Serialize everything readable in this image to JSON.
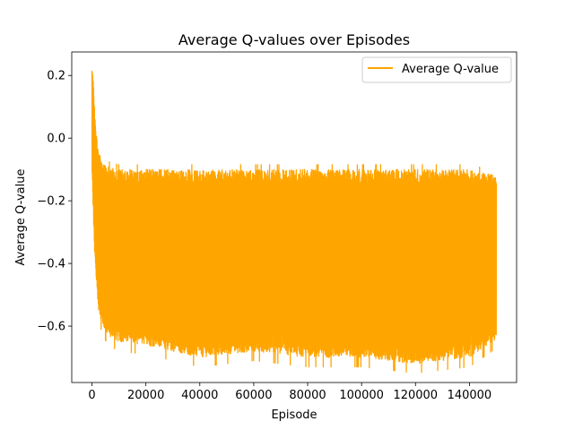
{
  "chart_data": {
    "type": "line",
    "title": "Average Q-values over Episodes",
    "xlabel": "Episode",
    "ylabel": "Average Q-value",
    "xlim": [
      -7500,
      157500
    ],
    "ylim": [
      -0.78,
      0.275
    ],
    "xticks": [
      0,
      20000,
      40000,
      60000,
      80000,
      100000,
      120000,
      140000
    ],
    "xtick_labels": [
      "0",
      "20000",
      "40000",
      "60000",
      "80000",
      "100000",
      "120000",
      "140000"
    ],
    "yticks": [
      0.2,
      0.0,
      -0.2,
      -0.4,
      -0.6
    ],
    "ytick_labels": [
      "0.2",
      "0.0",
      "−0.2",
      "−0.4",
      "−0.6"
    ],
    "grid": false,
    "legend_position": "top-right",
    "series": [
      {
        "name": "Average Q-value",
        "color": "#ffa500",
        "x_range": [
          0,
          150000
        ],
        "envelope": {
          "x": [
            0,
            300,
            800,
            1500,
            2500,
            4000,
            6000,
            10000,
            20000,
            40000,
            60000,
            80000,
            100000,
            120000,
            140000,
            150000
          ],
          "upper": [
            0.23,
            0.22,
            0.12,
            0.03,
            -0.04,
            -0.08,
            -0.09,
            -0.1,
            -0.1,
            -0.1,
            -0.1,
            -0.1,
            -0.1,
            -0.1,
            -0.1,
            -0.12
          ],
          "lower": [
            -0.05,
            -0.2,
            -0.35,
            -0.45,
            -0.55,
            -0.6,
            -0.63,
            -0.65,
            -0.66,
            -0.7,
            -0.68,
            -0.7,
            -0.7,
            -0.72,
            -0.7,
            -0.64
          ]
        }
      }
    ]
  }
}
